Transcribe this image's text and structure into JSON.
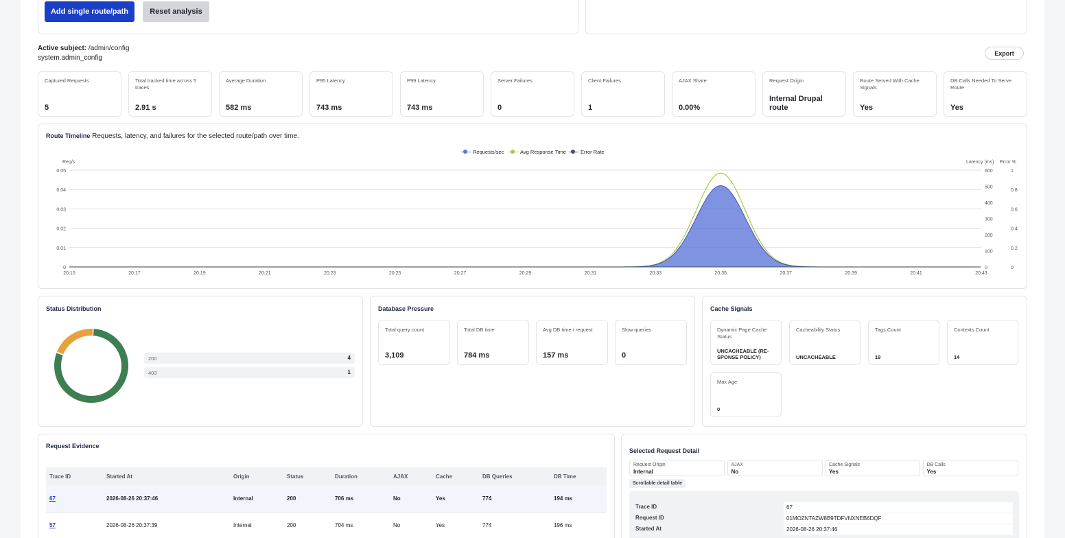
{
  "actions": {
    "add_label": "Add single route/path",
    "reset_label": "Reset analysis",
    "export_label": "Export"
  },
  "subject": {
    "label": "Active subject:",
    "path": "/admin/config",
    "route": "system.admin_config"
  },
  "metrics": [
    {
      "label": "Captured Requests",
      "value": "5"
    },
    {
      "label": "Total tracked time across 5 traces",
      "value": "2.91 s"
    },
    {
      "label": "Average Duration",
      "value": "582 ms"
    },
    {
      "label": "P95 Latency",
      "value": "743 ms"
    },
    {
      "label": "P99 Latency",
      "value": "743 ms"
    },
    {
      "label": "Server Failures",
      "value": "0"
    },
    {
      "label": "Client Failures",
      "value": "1"
    },
    {
      "label": "AJAX Share",
      "value": "0.00%"
    },
    {
      "label": "Request Origin",
      "value": "Internal Drupal route"
    },
    {
      "label": "Route Served With Cache Signals",
      "value": "Yes"
    },
    {
      "label": "DB Calls Needed To Serve Route",
      "value": "Yes"
    }
  ],
  "timeline": {
    "title": "Route Timeline",
    "subtitle": "Requests, latency, and failures for the selected route/path over time."
  },
  "chart_data": {
    "type": "area",
    "title": "Route Timeline",
    "x_ticks": [
      "20:15",
      "20:17",
      "20:19",
      "20:21",
      "20:23",
      "20:25",
      "20:27",
      "20:29",
      "20:31",
      "20:33",
      "20:35",
      "20:37",
      "20:39",
      "20:41",
      "20:43"
    ],
    "y_left": {
      "label": "Req/s",
      "range": [
        0,
        0.05
      ],
      "ticks": [
        "0",
        "0.01",
        "0.02",
        "0.03",
        "0.04",
        "0.05"
      ]
    },
    "y_right_latency": {
      "label": "Latency (ms)",
      "range": [
        0,
        600
      ],
      "ticks": [
        "0",
        "100",
        "200",
        "300",
        "400",
        "500",
        "600"
      ]
    },
    "y_right_error": {
      "label": "Error %",
      "range": [
        0,
        1
      ],
      "ticks": [
        "0",
        "0.2",
        "0.4",
        "0.6",
        "0.8",
        "1"
      ]
    },
    "legend_position": "top-center",
    "series": [
      {
        "name": "Requests/sec",
        "color": "#5b74d9",
        "axis": "left",
        "peak_time": "20:35",
        "peak_value": 0.042,
        "spread_minutes": 0.75
      },
      {
        "name": "Avg Response Time",
        "color": "#a8c84a",
        "axis": "latency",
        "peak_time": "20:35",
        "peak_value": 582,
        "spread_minutes": 0.75
      },
      {
        "name": "Error Rate",
        "color": "#4a4f63",
        "axis": "error",
        "peak_time": "20:35",
        "peak_value": 0,
        "spread_minutes": 0.75
      }
    ]
  },
  "status_distribution": {
    "title": "Status Distribution",
    "items": [
      {
        "code": "200",
        "count": "4",
        "color": "#3e7e53"
      },
      {
        "code": "403",
        "count": "1",
        "color": "#e9a23b"
      }
    ]
  },
  "db_pressure": {
    "title": "Database Pressure",
    "cards": [
      {
        "label": "Total query count",
        "value": "3,109"
      },
      {
        "label": "Total DB time",
        "value": "784 ms"
      },
      {
        "label": "Avg DB time / request",
        "value": "157 ms"
      },
      {
        "label": "Slow queries",
        "value": "0"
      }
    ]
  },
  "cache_signals": {
    "title": "Cache Signals",
    "cards": [
      {
        "label": "Dynamic Page Cache Status",
        "value": "UNCACHEABLE (RE-SPONSE POLICY)"
      },
      {
        "label": "Cacheability Status",
        "value": "UNCACHEABLE"
      },
      {
        "label": "Tags Count",
        "value": "19"
      },
      {
        "label": "Contexts Count",
        "value": "14"
      },
      {
        "label": "Max Age",
        "value": "0"
      }
    ]
  },
  "evidence": {
    "title": "Request Evidence",
    "columns": [
      "Trace ID",
      "Started At",
      "Origin",
      "Status",
      "Duration",
      "AJAX",
      "Cache",
      "DB Queries",
      "DB Time"
    ],
    "rows": [
      [
        "67",
        "2026-08-26 20:37:46",
        "Internal",
        "200",
        "706 ms",
        "No",
        "Yes",
        "774",
        "194 ms"
      ],
      [
        "57",
        "2026-08-26 20:37:39",
        "Internal",
        "200",
        "704 ms",
        "No",
        "Yes",
        "774",
        "196 ms"
      ]
    ]
  },
  "detail": {
    "title": "Selected Request Detail",
    "chips": [
      {
        "label": "Request Origin",
        "value": "Internal"
      },
      {
        "label": "AJAX",
        "value": "No"
      },
      {
        "label": "Cache Signals",
        "value": "Yes"
      },
      {
        "label": "DB Calls",
        "value": "Yes"
      }
    ],
    "tag": "Scrollable detail table",
    "rows": [
      {
        "key": "Trace ID",
        "value": "67"
      },
      {
        "key": "Request ID",
        "value": "01MOZNTAZW8B9TDFVNXNEB6DQF"
      },
      {
        "key": "Started At",
        "value": "2026-08-26 20:37:46"
      }
    ]
  }
}
